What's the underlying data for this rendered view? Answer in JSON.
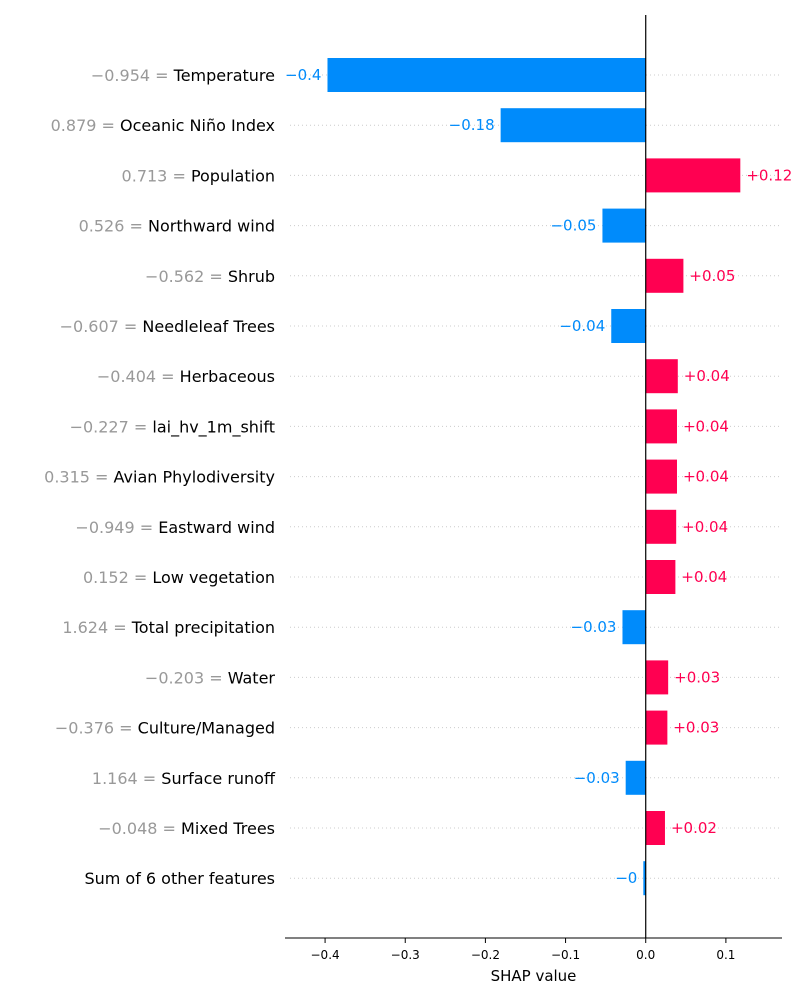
{
  "chart_data": {
    "type": "bar",
    "orientation": "horizontal",
    "xlabel": "SHAP value",
    "xlim": [
      -0.45,
      0.17
    ],
    "xticks": [
      -0.4,
      -0.3,
      -0.2,
      -0.1,
      0.0,
      0.1
    ],
    "xtick_labels": [
      "−0.4",
      "−0.3",
      "−0.2",
      "−0.1",
      "0.0",
      "0.1"
    ],
    "colors": {
      "positive": "#ff0051",
      "negative": "#008bfb",
      "feature_value": "#999999"
    },
    "features": [
      {
        "value_text": "−0.954",
        "name": "Temperature",
        "shap": -0.397,
        "label": "−0.4"
      },
      {
        "value_text": "0.879",
        "name": "Oceanic Niño Index",
        "shap": -0.181,
        "label": "−0.18"
      },
      {
        "value_text": "0.713",
        "name": "Population",
        "shap": 0.118,
        "label": "+0.12"
      },
      {
        "value_text": "0.526",
        "name": "Northward wind",
        "shap": -0.054,
        "label": "−0.05"
      },
      {
        "value_text": "−0.562",
        "name": "Shrub",
        "shap": 0.047,
        "label": "+0.05"
      },
      {
        "value_text": "−0.607",
        "name": "Needleleaf Trees",
        "shap": -0.043,
        "label": "−0.04"
      },
      {
        "value_text": "−0.404",
        "name": "Herbaceous",
        "shap": 0.04,
        "label": "+0.04"
      },
      {
        "value_text": "−0.227",
        "name": "lai_hv_1m_shift",
        "shap": 0.039,
        "label": "+0.04"
      },
      {
        "value_text": "0.315",
        "name": "Avian Phylodiversity",
        "shap": 0.039,
        "label": "+0.04"
      },
      {
        "value_text": "−0.949",
        "name": "Eastward wind",
        "shap": 0.038,
        "label": "+0.04"
      },
      {
        "value_text": "0.152",
        "name": "Low vegetation",
        "shap": 0.037,
        "label": "+0.04"
      },
      {
        "value_text": "1.624",
        "name": "Total precipitation",
        "shap": -0.029,
        "label": "−0.03"
      },
      {
        "value_text": "−0.203",
        "name": "Water",
        "shap": 0.028,
        "label": "+0.03"
      },
      {
        "value_text": "−0.376",
        "name": "Culture/Managed",
        "shap": 0.027,
        "label": "+0.03"
      },
      {
        "value_text": "1.164",
        "name": "Surface runoff",
        "shap": -0.025,
        "label": "−0.03"
      },
      {
        "value_text": "−0.048",
        "name": "Mixed Trees",
        "shap": 0.024,
        "label": "+0.02"
      },
      {
        "value_text": "",
        "name": "Sum of 6 other features",
        "shap": -0.003,
        "label": "−0"
      }
    ]
  }
}
